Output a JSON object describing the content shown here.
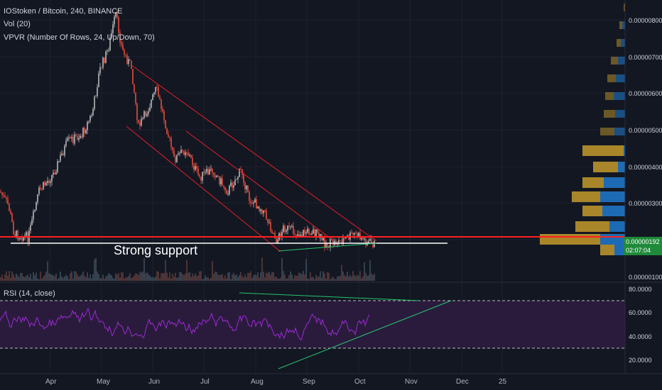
{
  "legend": {
    "title": "IOStoken / Bitcoin, 240, BINANCE",
    "vol": "Vol (20)",
    "vpvr": "VPVR (Number Of Rows, 24, Up/Down, 70)",
    "rsi": "RSI (14, close)"
  },
  "annotation": {
    "support": "Strong support"
  },
  "colors": {
    "background": "#131722",
    "grid": "#1e2230",
    "up_candle": "#b8b8b8",
    "down_candle": "#e74c3c",
    "channel": "#e31f26",
    "support_line": "#ffffff",
    "resistance_line": "#ff2020",
    "green_line": "#27c46e",
    "rsi_line": "#9b2bd1",
    "rsi_band": "#2a1b3d",
    "vpvr_up": "#1f74c4",
    "vpvr_down": "#c49a2a",
    "price_badge": "#1f8a3a"
  },
  "price_axis": {
    "labels": [
      "0.00000800",
      "0.00000700",
      "0.00000600",
      "0.00000500",
      "0.00000400",
      "0.00000300",
      "0.00000100"
    ],
    "current_price": "0.00000192",
    "countdown": "02:07:04"
  },
  "rsi_axis": {
    "labels": [
      "80.0000",
      "60.0000",
      "40.0000",
      "20.0000"
    ]
  },
  "time_axis": {
    "labels": [
      "Apr",
      "May",
      "Jun",
      "Jul",
      "Aug",
      "Sep",
      "Oct",
      "Nov",
      "Dec",
      "25"
    ]
  }
}
